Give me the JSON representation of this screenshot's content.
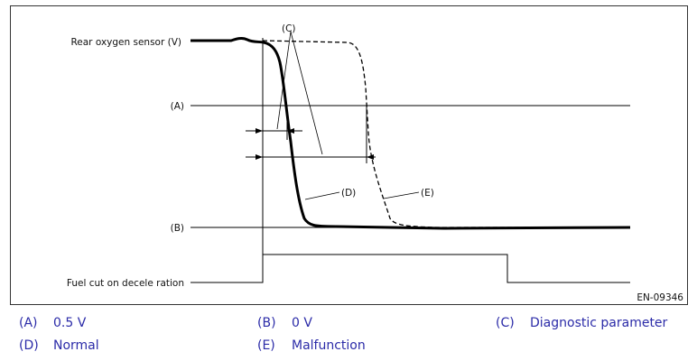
{
  "figure": {
    "labels": {
      "rear_sensor": "Rear oxygen sensor (V)",
      "a": "(A)",
      "b": "(B)",
      "c": "(C)",
      "d": "(D)",
      "e": "(E)",
      "fuel_cut": "Fuel cut on decele ration"
    },
    "figure_code": "EN-09346"
  },
  "legend": {
    "a": {
      "key": "(A)",
      "text": "0.5 V"
    },
    "b": {
      "key": "(B)",
      "text": "0 V"
    },
    "c": {
      "key": "(C)",
      "text": "Diagnostic parameter"
    },
    "d": {
      "key": "(D)",
      "text": "Normal"
    },
    "e": {
      "key": "(E)",
      "text": "Malfunction"
    }
  },
  "colors": {
    "legend_text": "#2b2ba8",
    "line": "#000000"
  }
}
